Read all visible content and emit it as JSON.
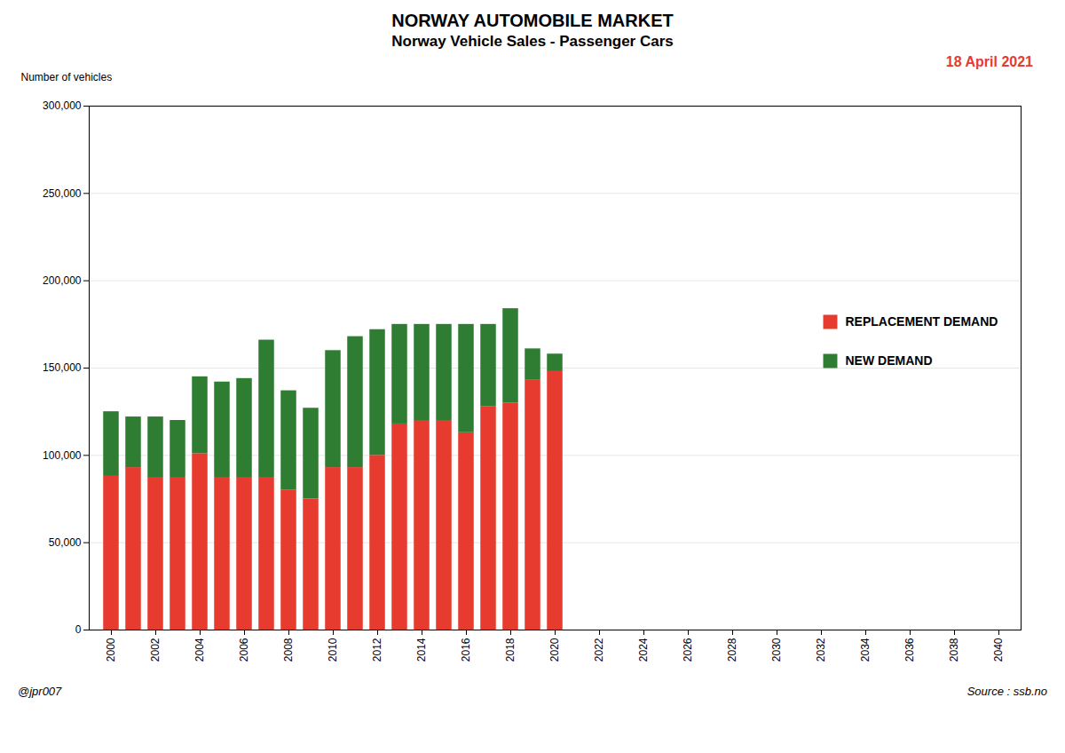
{
  "chart_data": {
    "type": "bar",
    "title": "NORWAY AUTOMOBILE MARKET",
    "subtitle": "Norway Vehicle Sales - Passenger Cars",
    "ylabel": "Number of vehicles",
    "annotations": [
      "18 April 2021",
      "@jpr007",
      "Source : ssb.no"
    ],
    "x": [
      2000,
      2001,
      2002,
      2003,
      2004,
      2005,
      2006,
      2007,
      2008,
      2009,
      2010,
      2011,
      2012,
      2013,
      2014,
      2015,
      2016,
      2017,
      2018,
      2019,
      2020
    ],
    "series": [
      {
        "name": "REPLACEMENT DEMAND",
        "color": "#e63b2e",
        "values": [
          88000,
          93000,
          87000,
          87000,
          101000,
          87000,
          87000,
          87000,
          80000,
          75000,
          93000,
          93000,
          100000,
          118000,
          120000,
          120000,
          113000,
          128000,
          130000,
          143000,
          148000
        ]
      },
      {
        "name": "NEW DEMAND",
        "color": "#2e7d32",
        "values": [
          37000,
          29000,
          35000,
          33000,
          44000,
          55000,
          57000,
          79000,
          57000,
          52000,
          67000,
          75000,
          72000,
          57000,
          55000,
          55000,
          62000,
          47000,
          54000,
          18000,
          10000
        ]
      }
    ],
    "stacked": true,
    "xlim": [
      1999,
      2041
    ],
    "xticks": [
      2000,
      2002,
      2004,
      2006,
      2008,
      2010,
      2012,
      2014,
      2016,
      2018,
      2020,
      2022,
      2024,
      2026,
      2028,
      2030,
      2032,
      2034,
      2036,
      2038,
      2040
    ],
    "ylim": [
      0,
      300000
    ],
    "yticks": [
      0,
      {
        "value": 50000,
        "label": "50,000"
      },
      {
        "value": 100000,
        "label": "100,000"
      },
      {
        "value": 150000,
        "label": "150,000"
      },
      {
        "value": 200000,
        "label": "200,000"
      },
      {
        "value": 250000,
        "label": "250,000"
      },
      {
        "value": 300000,
        "label": "300,000"
      }
    ],
    "grid": true,
    "legend": "right"
  }
}
